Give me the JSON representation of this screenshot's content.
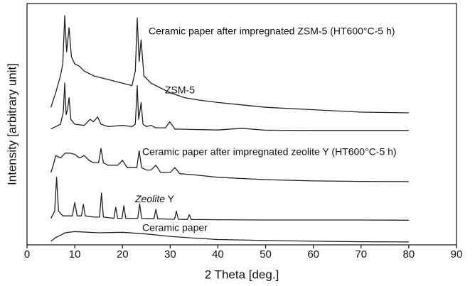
{
  "chart_data": {
    "type": "line",
    "xlabel": "2 Theta [deg.]",
    "ylabel": "Intensity [arbitrary unit]",
    "xlim": [
      0,
      90
    ],
    "xticks": [
      0,
      10,
      20,
      30,
      40,
      50,
      60,
      70,
      80,
      90
    ],
    "ylim": [
      0,
      100
    ],
    "series": [
      {
        "name": "Ceramic paper after impregnated ZSM-5 (HT600°C-5 h)",
        "color": "#222222",
        "x": [
          5,
          6,
          7,
          7.5,
          7.9,
          8.3,
          8.8,
          9.3,
          10,
          11,
          12,
          14,
          16,
          18,
          20,
          22,
          22.7,
          23.1,
          23.5,
          23.9,
          24.5,
          26,
          28,
          30,
          33,
          36,
          40,
          45,
          50,
          60,
          70,
          80
        ],
        "values": [
          57,
          63,
          70,
          75,
          95,
          80,
          90,
          78,
          75,
          74,
          72,
          70,
          69,
          68,
          67,
          66,
          72,
          94,
          76,
          85,
          70,
          67,
          65,
          63,
          61,
          60,
          59,
          58,
          57,
          56,
          55,
          54.7
        ]
      },
      {
        "name": "ZSM-5",
        "color": "#222222",
        "x": [
          5,
          6,
          7,
          7.6,
          7.9,
          8.2,
          8.5,
          8.8,
          9.2,
          10,
          12,
          13.2,
          13.9,
          14.8,
          15.5,
          17,
          20,
          22,
          22.7,
          23.1,
          23.4,
          23.7,
          23.9,
          24.3,
          25,
          26,
          27,
          29,
          29.9,
          31,
          35,
          40,
          45,
          50,
          60,
          70,
          80
        ],
        "values": [
          48,
          49,
          50,
          55,
          67,
          54,
          56,
          61,
          52,
          50,
          49.5,
          52,
          51,
          53,
          50,
          49,
          49.5,
          49,
          50,
          66,
          52,
          56,
          59,
          50,
          49,
          49.5,
          48.5,
          48.5,
          51,
          48,
          47.8,
          47.6,
          48.3,
          47.5,
          47.4,
          47.4,
          47.4
        ]
      },
      {
        "name": "Ceramic paper after impregnated zeolite Y (HT600°C-5 h)",
        "color": "#222222",
        "x": [
          5,
          5.5,
          6,
          7,
          8,
          9,
          10,
          11,
          12,
          13,
          14,
          15,
          15.5,
          16,
          17,
          18,
          19,
          20,
          21,
          22,
          23,
          23.5,
          24,
          25,
          26,
          27,
          28,
          30,
          31,
          32,
          35,
          40,
          45,
          50,
          60,
          70,
          80
        ],
        "values": [
          30,
          33,
          37,
          36,
          38,
          38,
          37.5,
          36,
          37,
          35,
          34,
          34,
          40,
          34,
          33,
          33,
          33,
          35,
          32,
          32,
          32,
          39,
          32,
          31,
          31,
          33,
          30,
          30,
          32,
          29.5,
          29,
          28,
          27.5,
          27,
          26.5,
          26.3,
          26.2
        ]
      },
      {
        "name": "Zeolite Y",
        "color": "#222222",
        "x": [
          5,
          5.8,
          6.2,
          6.6,
          7.5,
          9.5,
          10,
          10.5,
          11.4,
          11.8,
          12.2,
          14,
          15.2,
          15.6,
          16,
          18.2,
          18.6,
          19,
          19.9,
          20.3,
          20.7,
          23.2,
          23.6,
          24,
          26.6,
          27,
          27.4,
          30.9,
          31.3,
          31.7,
          33.6,
          34,
          34.4,
          40,
          50,
          60,
          70,
          80
        ],
        "values": [
          11,
          14,
          28,
          14,
          12,
          12,
          17.6,
          12,
          12,
          16.8,
          12,
          11.5,
          11.5,
          21.5,
          11.5,
          11,
          15.6,
          11,
          11,
          16.2,
          11,
          11,
          17,
          11,
          10.8,
          14.7,
          10.8,
          10.6,
          14,
          10.6,
          10.5,
          12.5,
          10.5,
          10.4,
          10.3,
          10.3,
          10.3,
          10.2
        ]
      },
      {
        "name": "Ceramic paper",
        "color": "#222222",
        "x": [
          5,
          6,
          8,
          10,
          15,
          20,
          25,
          30,
          35,
          40,
          50,
          60,
          70,
          80
        ],
        "values": [
          1.5,
          3,
          5,
          5.5,
          5,
          5.2,
          4.5,
          3.5,
          2.8,
          2.2,
          1.8,
          1.5,
          1.3,
          1.2
        ]
      }
    ]
  }
}
